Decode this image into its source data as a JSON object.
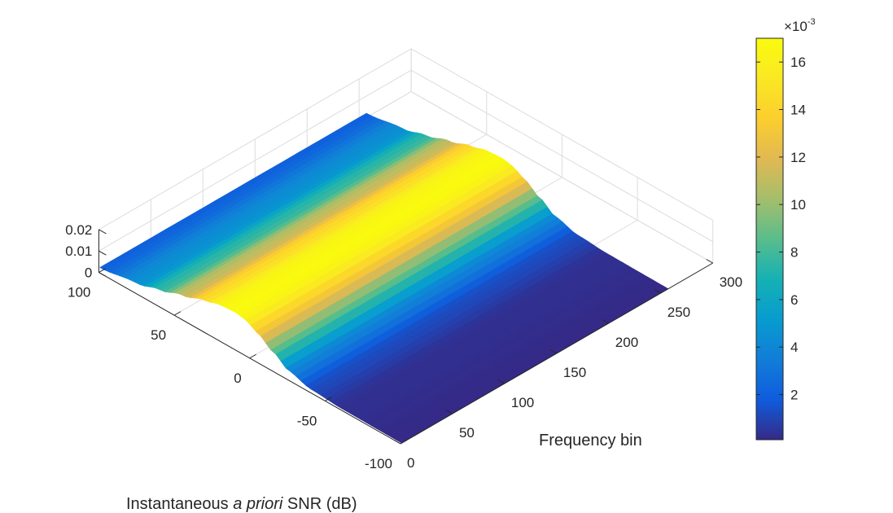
{
  "chart_data": {
    "type": "surface",
    "xlabel": "Frequency bin",
    "ylabel_parts": [
      "Instantaneous ",
      "a priori",
      " SNR (dB)"
    ],
    "zlabel": "",
    "x_range": [
      0,
      300
    ],
    "y_range": [
      -100,
      100
    ],
    "z_range": [
      0,
      0.02
    ],
    "x_ticks": [
      "0",
      "50",
      "100",
      "150",
      "200",
      "250",
      "300"
    ],
    "y_ticks": [
      "-100",
      "-50",
      "0",
      "50",
      "100"
    ],
    "z_ticks": [
      "0",
      "0.01",
      "0.02"
    ],
    "grid": true,
    "colormap": "parula",
    "surface": {
      "x_extent": [
        1,
        257
      ],
      "y_extent": [
        -100,
        100
      ],
      "peak_snr_db": 10,
      "peak_value": 0.017,
      "profile_snr_db": [
        -100,
        -60,
        -40,
        -25,
        -15,
        -5,
        0,
        5,
        10,
        20,
        30,
        45,
        60,
        75,
        100
      ],
      "profile_value": [
        0.0001,
        0.0003,
        0.0012,
        0.004,
        0.0085,
        0.013,
        0.015,
        0.0165,
        0.017,
        0.0165,
        0.0145,
        0.011,
        0.0075,
        0.0045,
        0.002
      ]
    },
    "colorbar": {
      "multiplier_base": "×10",
      "multiplier_exp": "-3",
      "ticks": [
        "2",
        "4",
        "6",
        "8",
        "10",
        "12",
        "14",
        "16"
      ],
      "tick_values": [
        2,
        4,
        6,
        8,
        10,
        12,
        14,
        16
      ],
      "range": [
        0.1,
        17
      ]
    }
  }
}
